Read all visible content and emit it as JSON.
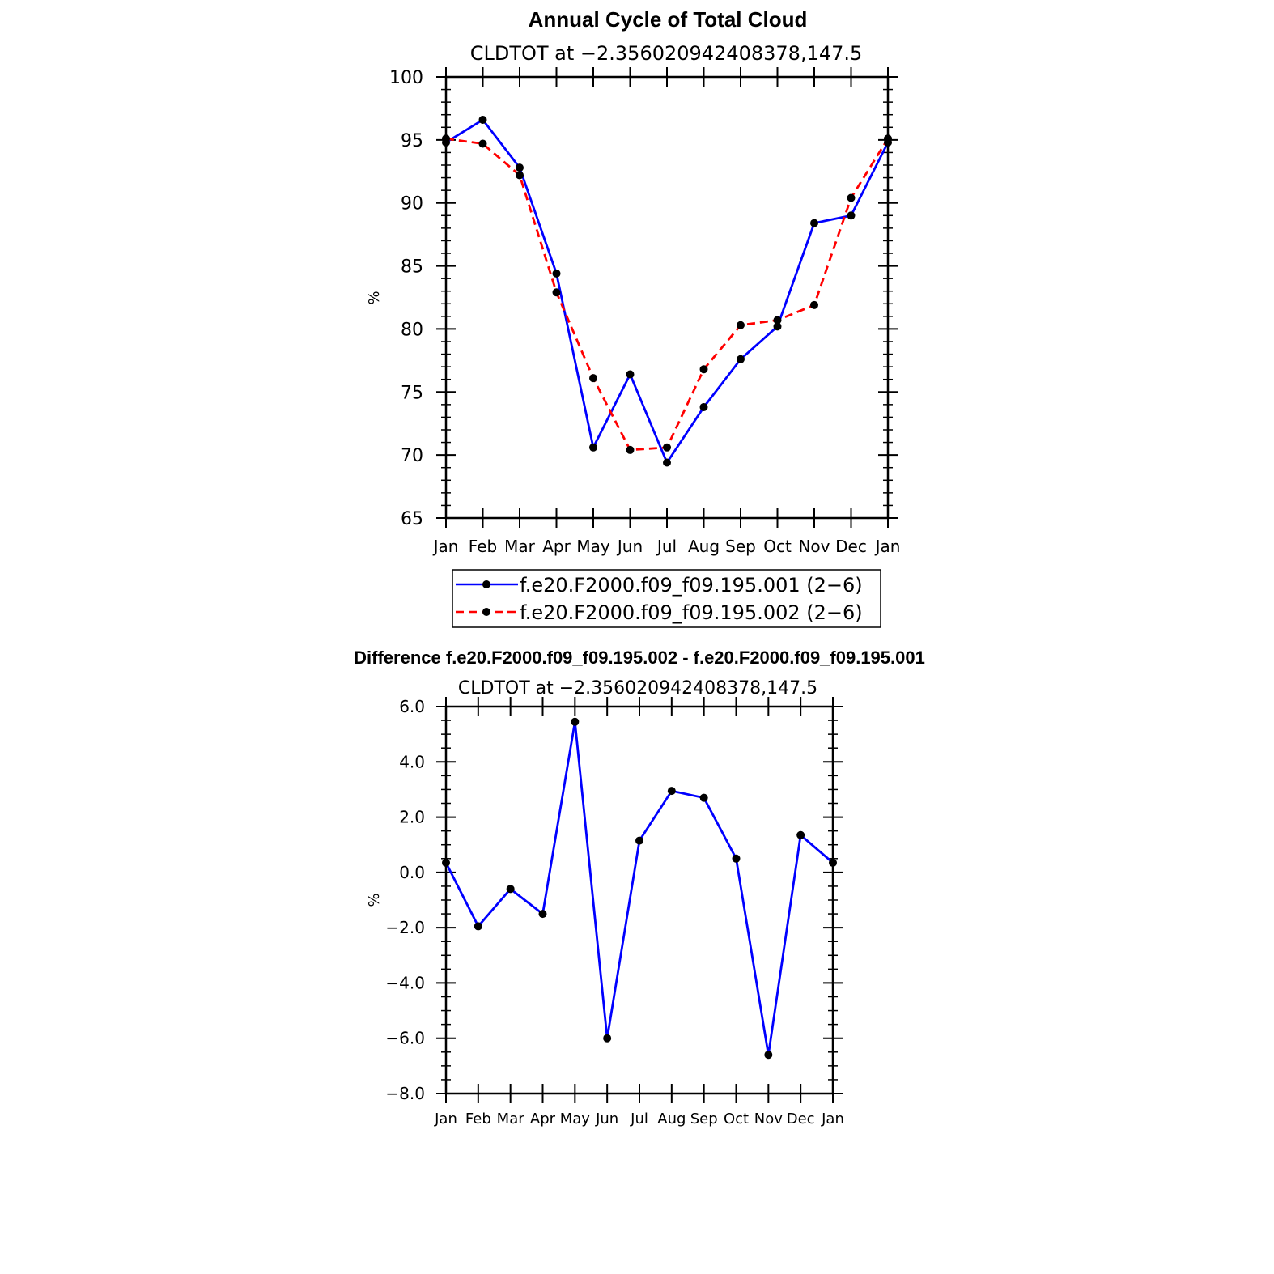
{
  "chart_data": [
    {
      "type": "line",
      "title": "Annual Cycle of Total Cloud",
      "subtitle": "CLDTOT at −2.356020942408378,147.5",
      "ylabel": "%",
      "xlabel": "",
      "categories": [
        "Jan",
        "Feb",
        "Mar",
        "Apr",
        "May",
        "Jun",
        "Jul",
        "Aug",
        "Sep",
        "Oct",
        "Nov",
        "Dec",
        "Jan"
      ],
      "ylim": [
        65,
        100
      ],
      "yticks": [
        "65",
        "70",
        "75",
        "80",
        "85",
        "90",
        "95",
        "100"
      ],
      "series": [
        {
          "name": "f.e20.F2000.f09_f09.195.001 (2−6)",
          "color": "#0000ff",
          "dash": "solid",
          "values": [
            94.8,
            96.6,
            92.8,
            84.4,
            70.6,
            76.4,
            69.4,
            73.8,
            77.6,
            80.2,
            88.4,
            89.0,
            94.8
          ]
        },
        {
          "name": "f.e20.F2000.f09_f09.195.002 (2−6)",
          "color": "#ff0000",
          "dash": "dashed",
          "values": [
            95.1,
            94.7,
            92.2,
            82.9,
            76.1,
            70.4,
            70.6,
            76.8,
            80.3,
            80.7,
            81.9,
            90.4,
            95.1
          ]
        }
      ],
      "legend": "below"
    },
    {
      "type": "line",
      "title": "Difference f.e20.F2000.f09_f09.195.002 - f.e20.F2000.f09_f09.195.001",
      "subtitle": "CLDTOT at −2.356020942408378,147.5",
      "ylabel": "%",
      "xlabel": "",
      "categories": [
        "Jan",
        "Feb",
        "Mar",
        "Apr",
        "May",
        "Jun",
        "Jul",
        "Aug",
        "Sep",
        "Oct",
        "Nov",
        "Dec",
        "Jan"
      ],
      "ylim": [
        -8,
        6
      ],
      "yticks": [
        "−8.0",
        "−6.0",
        "−4.0",
        "−2.0",
        "0.0",
        "2.0",
        "4.0",
        "6.0"
      ],
      "series": [
        {
          "name": "difference",
          "color": "#0000ff",
          "dash": "solid",
          "values": [
            0.35,
            -1.95,
            -0.6,
            -1.5,
            5.45,
            -6.0,
            1.15,
            2.95,
            2.7,
            0.5,
            -6.6,
            1.35,
            0.35
          ]
        }
      ]
    }
  ]
}
